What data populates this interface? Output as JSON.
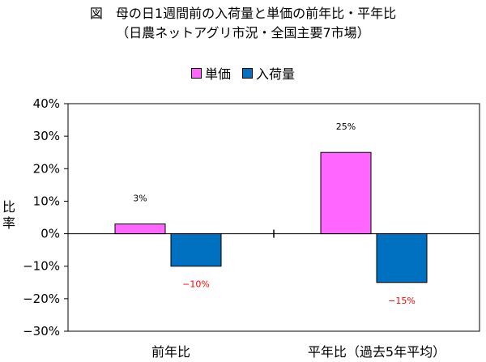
{
  "chart_data": {
    "type": "bar",
    "title": "図　母の日1週間前の入荷量と単価の前年比・平年比",
    "subtitle": "（日農ネットアグリ市況・全国主要7市場）",
    "ylabel": "比率",
    "xlabel": "",
    "categories": [
      "前年比",
      "平年比（過去5年平均）"
    ],
    "series": [
      {
        "name": "単価",
        "color": "#ff66ff",
        "values": [
          3,
          25
        ],
        "labels": [
          "3%",
          "25%"
        ]
      },
      {
        "name": "入荷量",
        "color": "#0070c0",
        "values": [
          -10,
          -15
        ],
        "labels": [
          "−10%",
          "−15%"
        ]
      }
    ],
    "ylim": [
      -30,
      40
    ],
    "yticks": [
      40,
      30,
      20,
      10,
      0,
      -10,
      -20,
      -30
    ],
    "ytick_labels": [
      "40%",
      "30%",
      "20%",
      "10%",
      "0%",
      "−10%",
      "−20%",
      "−30%"
    ],
    "negative_label_color": "#ff0000",
    "grid": false,
    "legend_position": "top-center"
  }
}
